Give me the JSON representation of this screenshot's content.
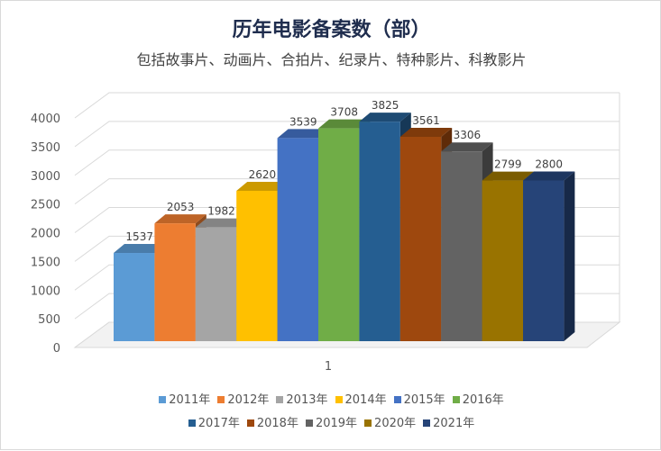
{
  "chart_data": {
    "type": "bar",
    "title": "历年电影备案数（部）",
    "subtitle": "包括故事片、动画片、合拍片、纪录片、特种影片、科教影片",
    "categories": [
      "1"
    ],
    "series": [
      {
        "name": "2011年",
        "values": [
          1537
        ],
        "color": "#5b9bd5"
      },
      {
        "name": "2012年",
        "values": [
          2053
        ],
        "color": "#ed7d31"
      },
      {
        "name": "2013年",
        "values": [
          1982
        ],
        "color": "#a5a5a5"
      },
      {
        "name": "2014年",
        "values": [
          2620
        ],
        "color": "#ffc000"
      },
      {
        "name": "2015年",
        "values": [
          3539
        ],
        "color": "#4472c4"
      },
      {
        "name": "2016年",
        "values": [
          3708
        ],
        "color": "#70ad47"
      },
      {
        "name": "2017年",
        "values": [
          3825
        ],
        "color": "#255e91"
      },
      {
        "name": "2018年",
        "values": [
          3561
        ],
        "color": "#9e480e"
      },
      {
        "name": "2019年",
        "values": [
          3306
        ],
        "color": "#636363"
      },
      {
        "name": "2020年",
        "values": [
          2799
        ],
        "color": "#997300"
      },
      {
        "name": "2021年",
        "values": [
          2800
        ],
        "color": "#264478"
      }
    ],
    "yticks": [
      0,
      500,
      1000,
      1500,
      2000,
      2500,
      3000,
      3500,
      4000
    ],
    "ylim": [
      0,
      4000
    ],
    "xlabel": "",
    "ylabel": "",
    "grid": true,
    "legend": "bottom",
    "style": "3d"
  }
}
